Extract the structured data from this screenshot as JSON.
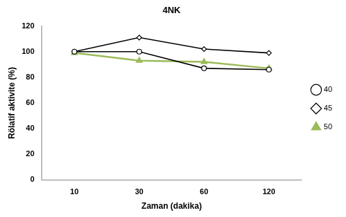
{
  "chart_data": {
    "type": "line",
    "title": "4NK",
    "x_label": "Zaman (dakika)",
    "y_label": "Rölatif aktivite (%)",
    "categories": [
      "10",
      "30",
      "60",
      "120"
    ],
    "series": [
      {
        "name": "40",
        "color": "#000000",
        "marker": "open_circle",
        "values": [
          100,
          100,
          87,
          86
        ]
      },
      {
        "name": "45",
        "color": "#000000",
        "marker": "open_diamond",
        "values": [
          100,
          111,
          102,
          99
        ]
      },
      {
        "name": "50",
        "color": "#9bbb59",
        "marker": "triangle",
        "values": [
          99,
          93,
          92,
          87
        ]
      }
    ],
    "ylim": [
      0,
      120
    ],
    "yticks": [
      0,
      20,
      40,
      60,
      80,
      100,
      120
    ],
    "grid": false,
    "legend": "right"
  }
}
